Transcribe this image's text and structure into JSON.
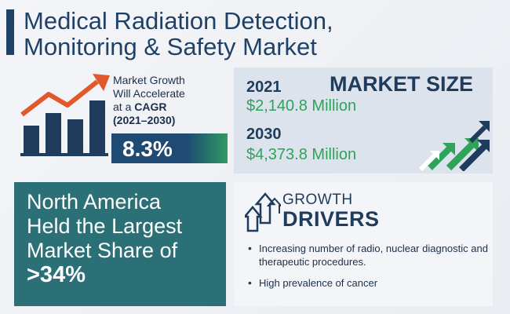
{
  "title": {
    "line1": "Medical Radiation Detection,",
    "line2": "Monitoring & Safety Market"
  },
  "cagr": {
    "line1": "Market Growth",
    "line2": "Will Accelerate",
    "line3_prefix": "at a ",
    "line3_bold": "CAGR",
    "line4": "(2021–2030)",
    "value": "8.3%"
  },
  "market_size": {
    "label": "MARKET SIZE",
    "entries": [
      {
        "year": "2021",
        "amount": "$2,140.8 Million"
      },
      {
        "year": "2030",
        "amount": "$4,373.8 Million"
      }
    ]
  },
  "region": {
    "line1": "North America",
    "line2": "Held the Largest",
    "line3": "Market Share of",
    "value": ">34%"
  },
  "drivers": {
    "heading_small": "GROWTH",
    "heading_big": "DRIVERS",
    "items": [
      "Increasing number of radio, nuclear diagnostic and therapeutic procedures.",
      "High prevalence of cancer"
    ]
  },
  "colors": {
    "navy": "#1f4168",
    "green": "#2ea35a",
    "teal": "#2b7077",
    "orange": "#e0592a"
  }
}
